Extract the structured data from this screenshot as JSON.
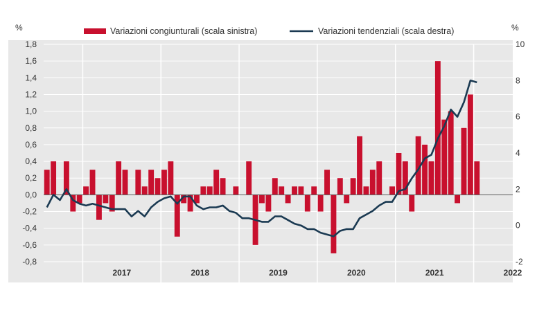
{
  "chart_data": {
    "type": "bar+line",
    "title": "",
    "left_unit": "%",
    "right_unit": "%",
    "legend": {
      "placement": "top",
      "bars_label": "Variazioni congiunturali (scala sinistra)",
      "line_label": "Variazioni tendenziali (scala destra)"
    },
    "colors": {
      "bars": "#c8102e",
      "line": "#1b3a52",
      "panel": "#e8e8e8",
      "grid": "#ffffff"
    },
    "x_start": "2016-07",
    "year_labels": [
      "2017",
      "2018",
      "2019",
      "2020",
      "2021",
      "2022"
    ],
    "y_left": {
      "min": -0.8,
      "max": 1.8,
      "step": 0.2,
      "tick_labels": [
        "-0,8",
        "-0,6",
        "-0,4",
        "-0,2",
        "0,0",
        "0,2",
        "0,4",
        "0,6",
        "0,8",
        "1,0",
        "1,2",
        "1,4",
        "1,6",
        "1,8"
      ]
    },
    "y_right": {
      "min": -2,
      "max": 10,
      "step": 2,
      "tick_labels": [
        "-2",
        "0",
        "2",
        "4",
        "6",
        "8",
        "10"
      ]
    },
    "monthly_change": [
      0.3,
      0.4,
      0.0,
      0.4,
      -0.2,
      -0.1,
      0.1,
      0.3,
      -0.3,
      -0.1,
      -0.2,
      0.4,
      0.3,
      0.0,
      0.3,
      0.1,
      0.3,
      0.2,
      0.3,
      0.4,
      -0.5,
      -0.1,
      -0.2,
      -0.1,
      0.1,
      0.1,
      0.3,
      0.2,
      0.0,
      0.1,
      0.0,
      0.4,
      -0.6,
      -0.1,
      -0.2,
      0.2,
      0.1,
      -0.1,
      0.1,
      0.1,
      -0.2,
      0.1,
      -0.2,
      0.3,
      -0.7,
      0.2,
      -0.1,
      0.2,
      0.7,
      0.1,
      0.3,
      0.4,
      0.0,
      0.1,
      0.5,
      0.4,
      -0.2,
      0.7,
      0.6,
      0.4,
      1.6,
      0.9,
      1.0,
      -0.1,
      0.8,
      1.2,
      0.4
    ],
    "annual_change": [
      1.0,
      1.7,
      1.4,
      2.0,
      1.4,
      1.2,
      1.1,
      1.2,
      1.1,
      1.0,
      0.9,
      0.9,
      0.9,
      0.5,
      0.8,
      0.5,
      1.0,
      1.3,
      1.5,
      1.6,
      1.2,
      1.6,
      1.6,
      1.1,
      0.9,
      1.0,
      1.0,
      1.1,
      0.8,
      0.7,
      0.4,
      0.4,
      0.3,
      0.2,
      0.2,
      0.5,
      0.5,
      0.3,
      0.1,
      0.0,
      -0.2,
      -0.2,
      -0.4,
      -0.5,
      -0.6,
      -0.3,
      -0.2,
      -0.2,
      0.4,
      0.6,
      0.8,
      1.1,
      1.3,
      1.3,
      1.9,
      2.0,
      2.6,
      3.1,
      3.7,
      3.9,
      4.8,
      5.5,
      6.4,
      6.0,
      6.8,
      8.0,
      7.9
    ]
  }
}
